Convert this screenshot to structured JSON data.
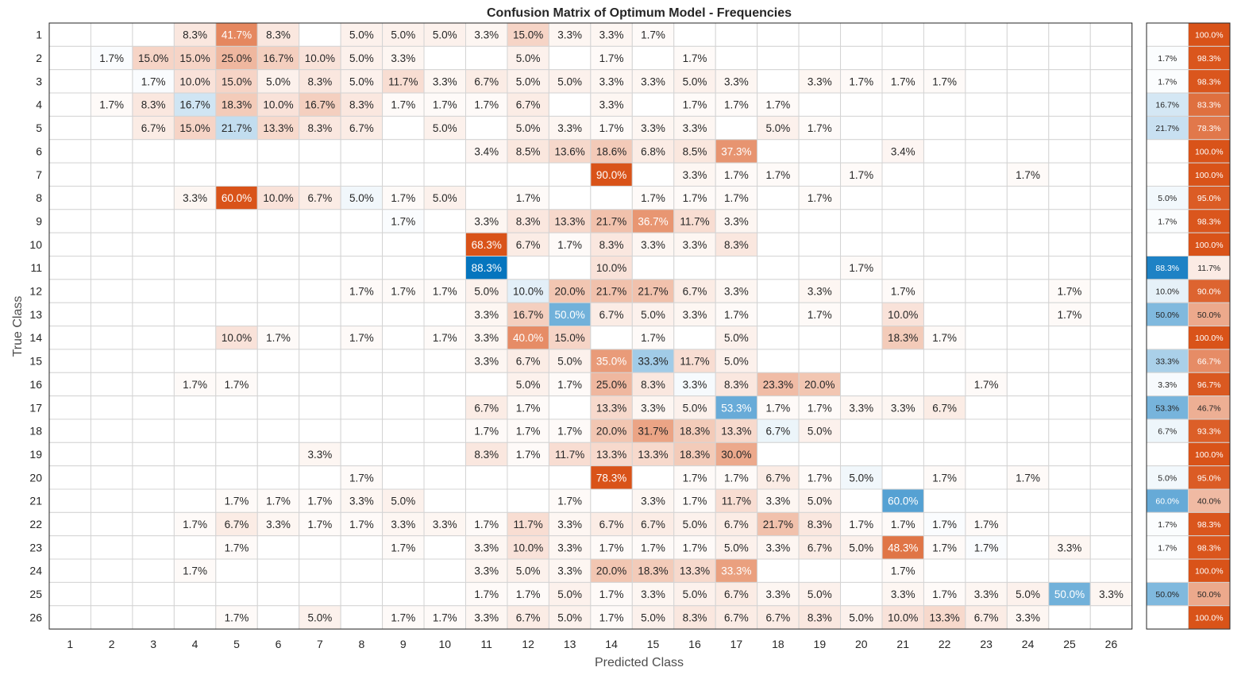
{
  "chart_data": {
    "type": "heatmap",
    "title": "Confusion Matrix of Optimum Model - Frequencies",
    "xlabel": "Predicted Class",
    "ylabel": "True Class",
    "classes": [
      "1",
      "2",
      "3",
      "4",
      "5",
      "6",
      "7",
      "8",
      "9",
      "10",
      "11",
      "12",
      "13",
      "14",
      "15",
      "16",
      "17",
      "18",
      "19",
      "20",
      "21",
      "22",
      "23",
      "24",
      "25",
      "26"
    ],
    "value_format": "percent",
    "matrix": [
      [
        null,
        null,
        null,
        8.3,
        41.7,
        8.3,
        null,
        5.0,
        5.0,
        5.0,
        3.3,
        15.0,
        3.3,
        3.3,
        1.7,
        null,
        null,
        null,
        null,
        null,
        null,
        null,
        null,
        null,
        null,
        null
      ],
      [
        null,
        1.7,
        15.0,
        15.0,
        25.0,
        16.7,
        10.0,
        5.0,
        3.3,
        null,
        null,
        5.0,
        null,
        1.7,
        null,
        1.7,
        null,
        null,
        null,
        null,
        null,
        null,
        null,
        null,
        null,
        null
      ],
      [
        null,
        null,
        1.7,
        10.0,
        15.0,
        5.0,
        8.3,
        5.0,
        11.7,
        3.3,
        6.7,
        5.0,
        5.0,
        3.3,
        3.3,
        5.0,
        3.3,
        null,
        3.3,
        1.7,
        1.7,
        1.7,
        null,
        null,
        null,
        null
      ],
      [
        null,
        1.7,
        8.3,
        16.7,
        18.3,
        10.0,
        16.7,
        8.3,
        1.7,
        1.7,
        1.7,
        6.7,
        null,
        3.3,
        null,
        1.7,
        1.7,
        1.7,
        null,
        null,
        null,
        null,
        null,
        null,
        null,
        null
      ],
      [
        null,
        null,
        6.7,
        15.0,
        21.7,
        13.3,
        8.3,
        6.7,
        null,
        5.0,
        null,
        5.0,
        3.3,
        1.7,
        3.3,
        3.3,
        null,
        5.0,
        1.7,
        null,
        null,
        null,
        null,
        null,
        null,
        null
      ],
      [
        null,
        null,
        null,
        null,
        null,
        null,
        null,
        null,
        null,
        null,
        3.4,
        8.5,
        13.6,
        18.6,
        6.8,
        8.5,
        37.3,
        null,
        null,
        null,
        3.4,
        null,
        null,
        null,
        null,
        null
      ],
      [
        null,
        null,
        null,
        null,
        null,
        null,
        null,
        null,
        null,
        null,
        null,
        null,
        null,
        90.0,
        null,
        3.3,
        1.7,
        1.7,
        null,
        1.7,
        null,
        null,
        null,
        1.7,
        null,
        null
      ],
      [
        null,
        null,
        null,
        3.3,
        60.0,
        10.0,
        6.7,
        5.0,
        1.7,
        5.0,
        null,
        1.7,
        null,
        null,
        1.7,
        1.7,
        1.7,
        null,
        1.7,
        null,
        null,
        null,
        null,
        null,
        null,
        null
      ],
      [
        null,
        null,
        null,
        null,
        null,
        null,
        null,
        null,
        1.7,
        null,
        3.3,
        8.3,
        13.3,
        21.7,
        36.7,
        11.7,
        3.3,
        null,
        null,
        null,
        null,
        null,
        null,
        null,
        null,
        null
      ],
      [
        null,
        null,
        null,
        null,
        null,
        null,
        null,
        null,
        null,
        null,
        68.3,
        6.7,
        1.7,
        8.3,
        3.3,
        3.3,
        8.3,
        null,
        null,
        null,
        null,
        null,
        null,
        null,
        null,
        null
      ],
      [
        null,
        null,
        null,
        null,
        null,
        null,
        null,
        null,
        null,
        null,
        88.3,
        null,
        null,
        10.0,
        null,
        null,
        null,
        null,
        null,
        1.7,
        null,
        null,
        null,
        null,
        null,
        null
      ],
      [
        null,
        null,
        null,
        null,
        null,
        null,
        null,
        1.7,
        1.7,
        1.7,
        5.0,
        10.0,
        20.0,
        21.7,
        21.7,
        6.7,
        3.3,
        null,
        3.3,
        null,
        1.7,
        null,
        null,
        null,
        1.7,
        null
      ],
      [
        null,
        null,
        null,
        null,
        null,
        null,
        null,
        null,
        null,
        null,
        3.3,
        16.7,
        50.0,
        6.7,
        5.0,
        3.3,
        1.7,
        null,
        1.7,
        null,
        10.0,
        null,
        null,
        null,
        1.7,
        null
      ],
      [
        null,
        null,
        null,
        null,
        10.0,
        1.7,
        null,
        1.7,
        null,
        1.7,
        3.3,
        40.0,
        15.0,
        null,
        1.7,
        null,
        5.0,
        null,
        null,
        null,
        18.3,
        1.7,
        null,
        null,
        null,
        null
      ],
      [
        null,
        null,
        null,
        null,
        null,
        null,
        null,
        null,
        null,
        null,
        3.3,
        6.7,
        5.0,
        35.0,
        33.3,
        11.7,
        5.0,
        null,
        null,
        null,
        null,
        null,
        null,
        null,
        null,
        null
      ],
      [
        null,
        null,
        null,
        1.7,
        1.7,
        null,
        null,
        null,
        null,
        null,
        null,
        5.0,
        1.7,
        25.0,
        8.3,
        3.3,
        8.3,
        23.3,
        20.0,
        null,
        null,
        null,
        1.7,
        null,
        null,
        null
      ],
      [
        null,
        null,
        null,
        null,
        null,
        null,
        null,
        null,
        null,
        null,
        6.7,
        1.7,
        null,
        13.3,
        3.3,
        5.0,
        53.3,
        1.7,
        1.7,
        3.3,
        3.3,
        6.7,
        null,
        null,
        null,
        null
      ],
      [
        null,
        null,
        null,
        null,
        null,
        null,
        null,
        null,
        null,
        null,
        1.7,
        1.7,
        1.7,
        20.0,
        31.7,
        18.3,
        13.3,
        6.7,
        5.0,
        null,
        null,
        null,
        null,
        null,
        null,
        null
      ],
      [
        null,
        null,
        null,
        null,
        null,
        null,
        3.3,
        null,
        null,
        null,
        8.3,
        1.7,
        11.7,
        13.3,
        13.3,
        18.3,
        30.0,
        null,
        null,
        null,
        null,
        null,
        null,
        null,
        null,
        null
      ],
      [
        null,
        null,
        null,
        null,
        null,
        null,
        null,
        1.7,
        null,
        null,
        null,
        null,
        null,
        78.3,
        null,
        1.7,
        1.7,
        6.7,
        1.7,
        5.0,
        null,
        1.7,
        null,
        1.7,
        null,
        null
      ],
      [
        null,
        null,
        null,
        null,
        1.7,
        1.7,
        1.7,
        3.3,
        5.0,
        null,
        null,
        null,
        1.7,
        null,
        3.3,
        1.7,
        11.7,
        3.3,
        5.0,
        null,
        60.0,
        null,
        null,
        null,
        null,
        null
      ],
      [
        null,
        null,
        null,
        1.7,
        6.7,
        3.3,
        1.7,
        1.7,
        3.3,
        3.3,
        1.7,
        11.7,
        3.3,
        6.7,
        6.7,
        5.0,
        6.7,
        21.7,
        8.3,
        1.7,
        1.7,
        1.7,
        1.7,
        null,
        null,
        null
      ],
      [
        null,
        null,
        null,
        null,
        1.7,
        null,
        null,
        null,
        1.7,
        null,
        3.3,
        10.0,
        3.3,
        1.7,
        1.7,
        1.7,
        5.0,
        3.3,
        6.7,
        5.0,
        48.3,
        1.7,
        1.7,
        null,
        3.3,
        null
      ],
      [
        null,
        null,
        null,
        1.7,
        null,
        null,
        null,
        null,
        null,
        null,
        3.3,
        5.0,
        3.3,
        20.0,
        18.3,
        13.3,
        33.3,
        null,
        null,
        null,
        1.7,
        null,
        null,
        null,
        null,
        null
      ],
      [
        null,
        null,
        null,
        null,
        null,
        null,
        null,
        null,
        null,
        null,
        1.7,
        1.7,
        5.0,
        1.7,
        3.3,
        5.0,
        6.7,
        3.3,
        5.0,
        null,
        3.3,
        1.7,
        3.3,
        5.0,
        50.0,
        3.3
      ],
      [
        null,
        null,
        null,
        null,
        1.7,
        null,
        5.0,
        null,
        1.7,
        1.7,
        3.3,
        6.7,
        5.0,
        1.7,
        5.0,
        8.3,
        6.7,
        6.7,
        8.3,
        5.0,
        10.0,
        13.3,
        6.7,
        3.3,
        null,
        null
      ]
    ],
    "row_summary": [
      [
        null,
        100.0
      ],
      [
        1.7,
        98.3
      ],
      [
        1.7,
        98.3
      ],
      [
        16.7,
        83.3
      ],
      [
        21.7,
        78.3
      ],
      [
        null,
        100.0
      ],
      [
        null,
        100.0
      ],
      [
        5.0,
        95.0
      ],
      [
        1.7,
        98.3
      ],
      [
        null,
        100.0
      ],
      [
        88.3,
        11.7
      ],
      [
        10.0,
        90.0
      ],
      [
        50.0,
        50.0
      ],
      [
        null,
        100.0
      ],
      [
        33.3,
        66.7
      ],
      [
        3.3,
        96.7
      ],
      [
        53.3,
        46.7
      ],
      [
        6.7,
        93.3
      ],
      [
        null,
        100.0
      ],
      [
        5.0,
        95.0
      ],
      [
        60.0,
        40.0
      ],
      [
        1.7,
        98.3
      ],
      [
        1.7,
        98.3
      ],
      [
        null,
        100.0
      ],
      [
        50.0,
        50.0
      ],
      [
        null,
        100.0
      ]
    ],
    "colors": {
      "correct": "#0072bd",
      "incorrect": "#d95319",
      "grid": "#d4d4d4",
      "frame": "#262626",
      "text_dark": "#262626",
      "text_light": "#ffffff"
    }
  }
}
